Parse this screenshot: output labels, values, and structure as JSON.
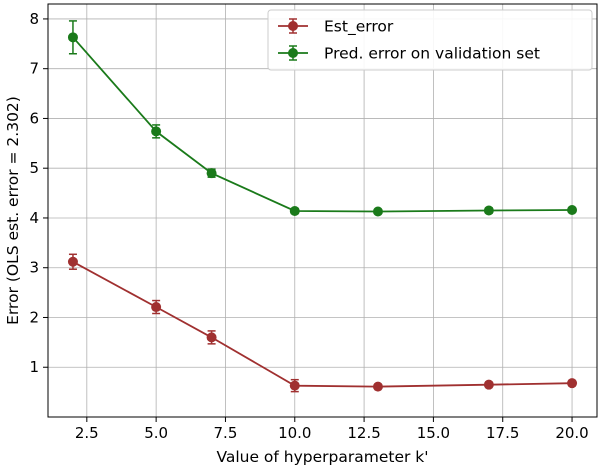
{
  "chart_data": {
    "type": "line",
    "title": "",
    "xlabel": "Value of hyperparameter k'",
    "ylabel": "Error (OLS est. error = 2.302)",
    "xlim": [
      1.1,
      20.9
    ],
    "ylim": [
      0.0,
      8.3
    ],
    "xticks": [
      2.5,
      5.0,
      7.5,
      10.0,
      12.5,
      15.0,
      17.5,
      20.0
    ],
    "xtick_labels": [
      "2.5",
      "5.0",
      "7.5",
      "10.0",
      "12.5",
      "15.0",
      "17.5",
      "20.0"
    ],
    "yticks": [
      1,
      2,
      3,
      4,
      5,
      6,
      7,
      8
    ],
    "ytick_labels": [
      "1",
      "2",
      "3",
      "4",
      "5",
      "6",
      "7",
      "8"
    ],
    "grid": true,
    "legend_position": "top-right",
    "x": [
      2,
      5,
      7,
      10,
      13,
      17,
      20
    ],
    "series": [
      {
        "name": "Est_error",
        "color": "#a03030",
        "values": [
          3.12,
          2.21,
          1.6,
          0.63,
          0.61,
          0.65,
          0.68
        ],
        "errors": [
          0.15,
          0.13,
          0.13,
          0.12,
          0.04,
          0.04,
          0.04
        ]
      },
      {
        "name": "Pred. error on validation set",
        "color": "#1a7a1a",
        "values": [
          7.63,
          5.74,
          4.9,
          4.14,
          4.13,
          4.15,
          4.16
        ],
        "errors": [
          0.33,
          0.13,
          0.08,
          0.05,
          0.04,
          0.05,
          0.04
        ]
      }
    ]
  }
}
